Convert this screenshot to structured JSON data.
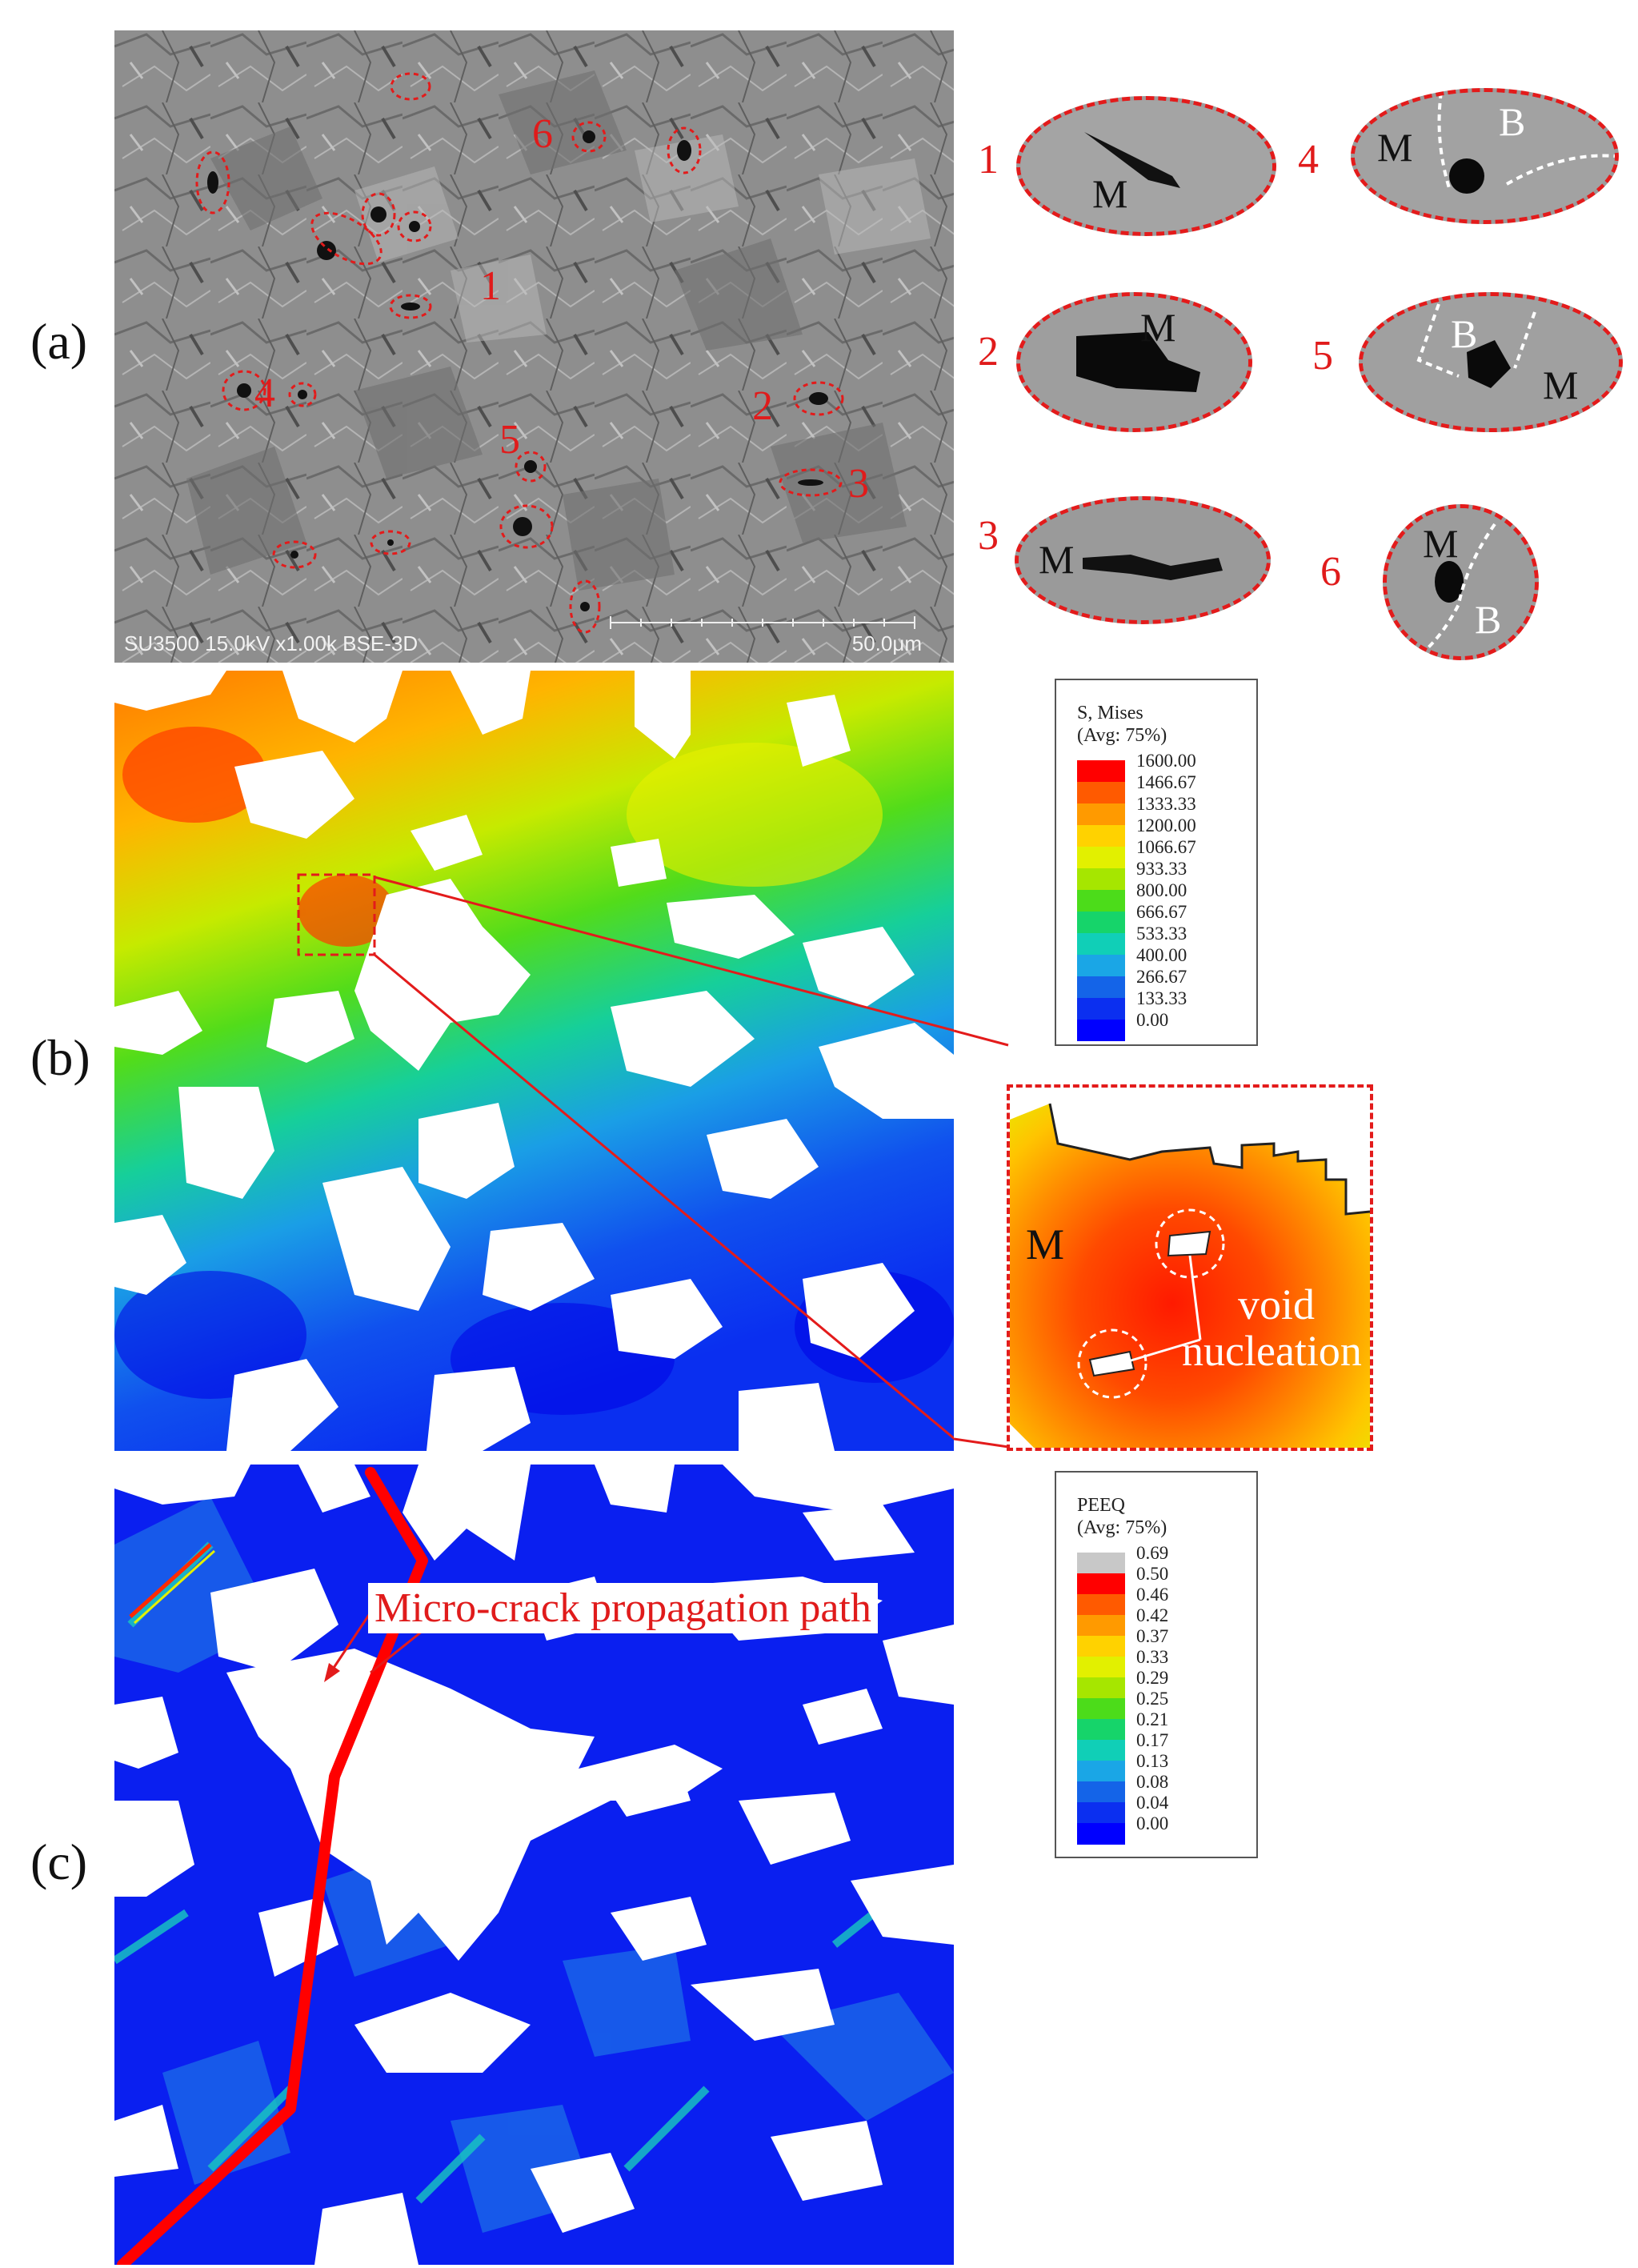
{
  "panels": {
    "a": "(a)",
    "b": "(b)",
    "c": "(c)"
  },
  "sem": {
    "footer_info": "SU3500 15.0kV x1.00k BSE-3D",
    "scale_bar": "50.0μm",
    "site_numbers": [
      "1",
      "2",
      "3",
      "4",
      "5",
      "6"
    ]
  },
  "zooms": [
    {
      "num": "1",
      "labels": [
        "M"
      ]
    },
    {
      "num": "2",
      "labels": [
        "M"
      ]
    },
    {
      "num": "3",
      "labels": [
        "M"
      ]
    },
    {
      "num": "4",
      "labels": [
        "M",
        "B"
      ]
    },
    {
      "num": "5",
      "labels": [
        "B",
        "M"
      ]
    },
    {
      "num": "6",
      "labels": [
        "M",
        "B"
      ]
    }
  ],
  "mises_legend": {
    "title1": "S, Mises",
    "title2": "(Avg: 75%)",
    "values": [
      "1600.00",
      "1466.67",
      "1333.33",
      "1200.00",
      "1066.67",
      "933.33",
      "800.00",
      "666.67",
      "533.33",
      "400.00",
      "266.67",
      "133.33",
      "0.00"
    ],
    "colors": [
      "#ff0000",
      "#ff5a00",
      "#ff9a00",
      "#ffd200",
      "#e2f000",
      "#a6e600",
      "#4cdc1a",
      "#16d46a",
      "#10cfb7",
      "#1aa6e6",
      "#1464e8",
      "#0b2ff0",
      "#0000ff"
    ]
  },
  "peeq_legend": {
    "title1": "PEEQ",
    "title2": "(Avg: 75%)",
    "values": [
      "0.69",
      "0.50",
      "0.46",
      "0.42",
      "0.37",
      "0.33",
      "0.29",
      "0.25",
      "0.21",
      "0.17",
      "0.13",
      "0.08",
      "0.04",
      "0.00"
    ],
    "colors": [
      "#c8c8c8",
      "#ff0000",
      "#ff5a00",
      "#ff9a00",
      "#ffd200",
      "#e2f000",
      "#a6e600",
      "#4cdc1a",
      "#16d46a",
      "#10cfb7",
      "#1aa6e6",
      "#1464e8",
      "#0b2ff0",
      "#0000ff"
    ]
  },
  "callout": {
    "phase": "M",
    "line1": "void",
    "line2": "nucleation"
  },
  "crack_label": "Micro-crack propagation path"
}
